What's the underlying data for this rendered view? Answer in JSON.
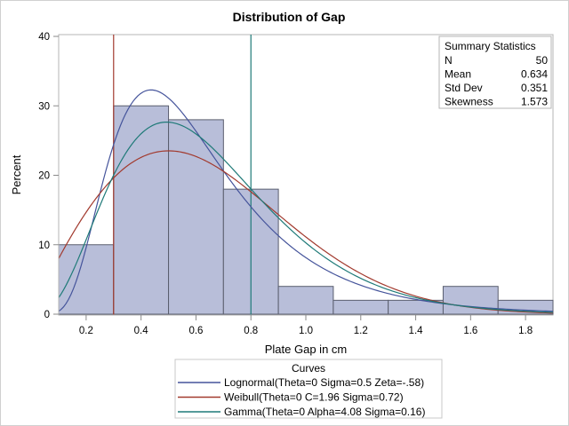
{
  "chart_data": {
    "type": "bar",
    "title": "Distribution of Gap",
    "xlabel": "Plate Gap in cm",
    "ylabel": "Percent",
    "xlim": [
      0.1,
      1.9
    ],
    "ylim": [
      0,
      40
    ],
    "xticks": [
      "0.2",
      "0.4",
      "0.6",
      "0.8",
      "1.0",
      "1.2",
      "1.4",
      "1.6",
      "1.8"
    ],
    "xtick_values": [
      0.2,
      0.4,
      0.6,
      0.8,
      1.0,
      1.2,
      1.4,
      1.6,
      1.8
    ],
    "yticks": [
      "0",
      "10",
      "20",
      "30",
      "40"
    ],
    "ytick_values": [
      0,
      10,
      20,
      30,
      40
    ],
    "grid": false,
    "bins": {
      "edges": [
        0.1,
        0.3,
        0.5,
        0.7,
        0.9,
        1.1,
        1.3,
        1.5,
        1.7,
        1.9
      ],
      "values": [
        10,
        30,
        28,
        18,
        4,
        2,
        2,
        4,
        2
      ],
      "fill": "#b8bed9",
      "edge": "#5a5e6e"
    },
    "reference_lines": [
      {
        "x": 0.3,
        "color": "#a23a2e"
      },
      {
        "x": 0.8,
        "color": "#1f7a78"
      }
    ],
    "curves": [
      {
        "name": "Lognormal(Theta=0 Sigma=0.5 Zeta=-.58)",
        "dist": "lognormal",
        "theta": 0,
        "sigma": 0.5,
        "zeta": -0.58,
        "color": "#45549b"
      },
      {
        "name": "Weibull(Theta=0 C=1.96 Sigma=0.72)",
        "dist": "weibull",
        "theta": 0,
        "c": 1.96,
        "sigma": 0.72,
        "color": "#a23a2e"
      },
      {
        "name": "Gamma(Theta=0 Alpha=4.08 Sigma=0.16)",
        "dist": "gamma",
        "theta": 0,
        "alpha": 4.08,
        "sigma": 0.16,
        "color": "#1f7a78"
      }
    ],
    "legend": {
      "title": "Curves",
      "placement": "bottom"
    },
    "inset": {
      "title": "Summary Statistics",
      "placement": "top-right",
      "rows": [
        {
          "label": "N",
          "value": "50"
        },
        {
          "label": "Mean",
          "value": "0.634"
        },
        {
          "label": "Std Dev",
          "value": "0.351"
        },
        {
          "label": "Skewness",
          "value": "1.573"
        }
      ]
    }
  }
}
